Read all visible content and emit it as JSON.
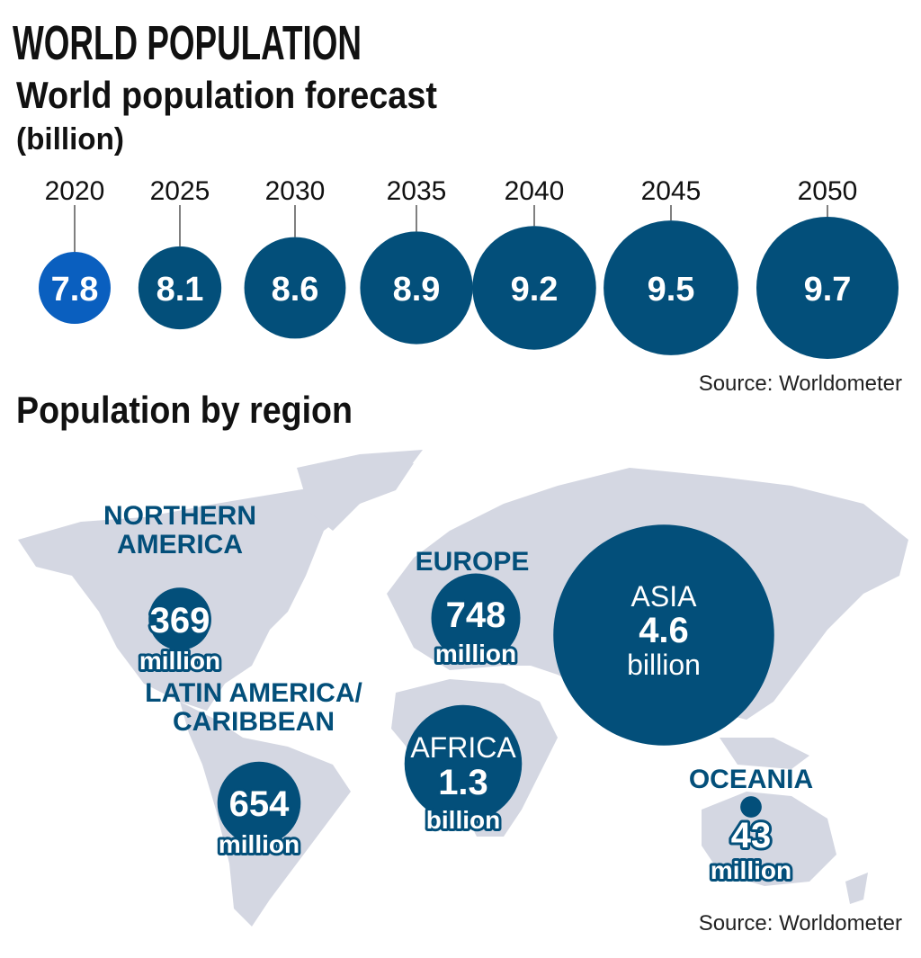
{
  "title": "WORLD POPULATION",
  "forecast": {
    "subtitle": "World population forecast",
    "unit": "(billion)",
    "source": "Source: Worldometer"
  },
  "region_section": {
    "subtitle": "Population by region",
    "source": "Source: Worldometer"
  },
  "colors": {
    "highlight": "#0a5fbf",
    "primary": "#034f7a",
    "map": "#d4d7e2"
  },
  "chart_data": [
    {
      "type": "bubble",
      "title": "World population forecast",
      "unit": "billion",
      "categories": [
        "2020",
        "2025",
        "2030",
        "2035",
        "2040",
        "2045",
        "2050"
      ],
      "values": [
        7.8,
        8.1,
        8.6,
        8.9,
        9.2,
        9.5,
        9.7
      ],
      "labels": [
        "7.8",
        "8.1",
        "8.6",
        "8.9",
        "9.2",
        "9.5",
        "9.7"
      ],
      "highlighted": "2020"
    },
    {
      "type": "bubble-map",
      "title": "Population by region",
      "regions": [
        {
          "name": "NORTHERN AMERICA",
          "line1": "NORTHERN",
          "line2": "AMERICA",
          "value_millions": 369,
          "value_label": "369",
          "unit": "million"
        },
        {
          "name": "LATIN AMERICA/ CARIBBEAN",
          "line1": "LATIN AMERICA/",
          "line2": "CARIBBEAN",
          "value_millions": 654,
          "value_label": "654",
          "unit": "million"
        },
        {
          "name": "EUROPE",
          "line1": "EUROPE",
          "line2": "",
          "value_millions": 748,
          "value_label": "748",
          "unit": "million"
        },
        {
          "name": "AFRICA",
          "line1": "AFRICA",
          "line2": "",
          "value_millions": 1300,
          "value_label": "1.3",
          "unit": "billion"
        },
        {
          "name": "ASIA",
          "line1": "ASIA",
          "line2": "",
          "value_millions": 4600,
          "value_label": "4.6",
          "unit": "billion"
        },
        {
          "name": "OCEANIA",
          "line1": "OCEANIA",
          "line2": "",
          "value_millions": 43,
          "value_label": "43",
          "unit": "million"
        }
      ]
    }
  ]
}
